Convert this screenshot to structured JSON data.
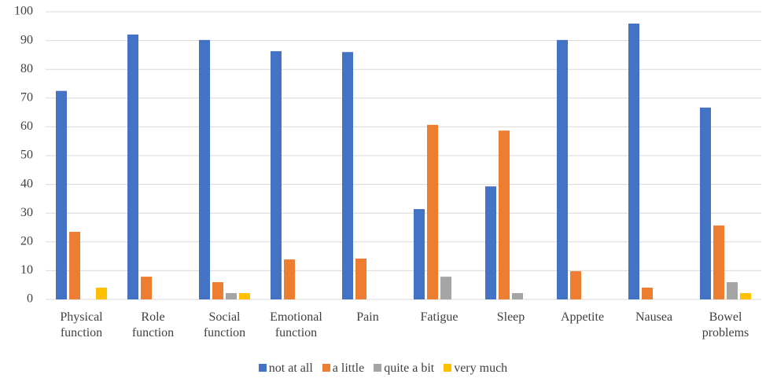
{
  "chart_data": {
    "type": "bar",
    "categories": [
      "Physical function",
      "Role function",
      "Social function",
      "Emotional function",
      "Pain",
      "Fatigue",
      "Sleep",
      "Appetite",
      "Nausea",
      "Bowel problems"
    ],
    "series": [
      {
        "name": "not at all",
        "color": "#4472c4",
        "values": [
          72.5,
          92.1,
          90.2,
          86.3,
          86,
          31.4,
          39.3,
          90.2,
          95.9,
          66.7
        ]
      },
      {
        "name": "a little",
        "color": "#ed7d31",
        "values": [
          23.5,
          7.9,
          6,
          13.9,
          14.2,
          60.7,
          58.7,
          9.8,
          4.1,
          25.7
        ]
      },
      {
        "name": "quite a bit",
        "color": "#a5a5a5",
        "values": [
          0,
          0,
          2.2,
          0,
          0,
          7.9,
          2.2,
          0,
          0,
          6
        ]
      },
      {
        "name": "very much",
        "color": "#ffc000",
        "values": [
          4.1,
          0,
          2.2,
          0,
          0,
          0,
          0,
          0,
          0,
          2.2
        ]
      }
    ],
    "ylim": [
      0,
      100
    ],
    "yticks": [
      0,
      10,
      20,
      30,
      40,
      50,
      60,
      70,
      80,
      90,
      100
    ],
    "grid": true,
    "legend": "bottom"
  }
}
